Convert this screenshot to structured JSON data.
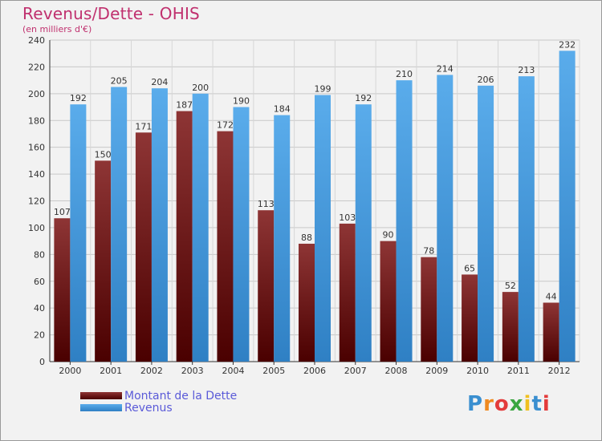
{
  "title": "Revenus/Dette - OHIS",
  "subtitle": "(en milliers d'€)",
  "logo_text": "Proxiti",
  "colors": {
    "debt_top": "#8e3535",
    "debt_bottom": "#4a0000",
    "revenue_top": "#5aaceb",
    "revenue_bottom": "#2f80c4",
    "title": "#c0306e",
    "legend_text": "#5a5ad8"
  },
  "chart_data": {
    "type": "bar",
    "categories": [
      "2000",
      "2001",
      "2002",
      "2003",
      "2004",
      "2005",
      "2006",
      "2007",
      "2008",
      "2009",
      "2010",
      "2011",
      "2012"
    ],
    "series": [
      {
        "name": "Montant de la Dette",
        "values": [
          107,
          150,
          171,
          187,
          172,
          113,
          88,
          103,
          90,
          78,
          65,
          52,
          44
        ]
      },
      {
        "name": "Revenus",
        "values": [
          192,
          205,
          204,
          200,
          190,
          184,
          199,
          192,
          210,
          214,
          206,
          213,
          232
        ]
      }
    ],
    "ylim": [
      0,
      240
    ],
    "yticks": [
      0,
      20,
      40,
      60,
      80,
      100,
      120,
      140,
      160,
      180,
      200,
      220,
      240
    ],
    "grid": true,
    "legend": "bottom-left"
  }
}
